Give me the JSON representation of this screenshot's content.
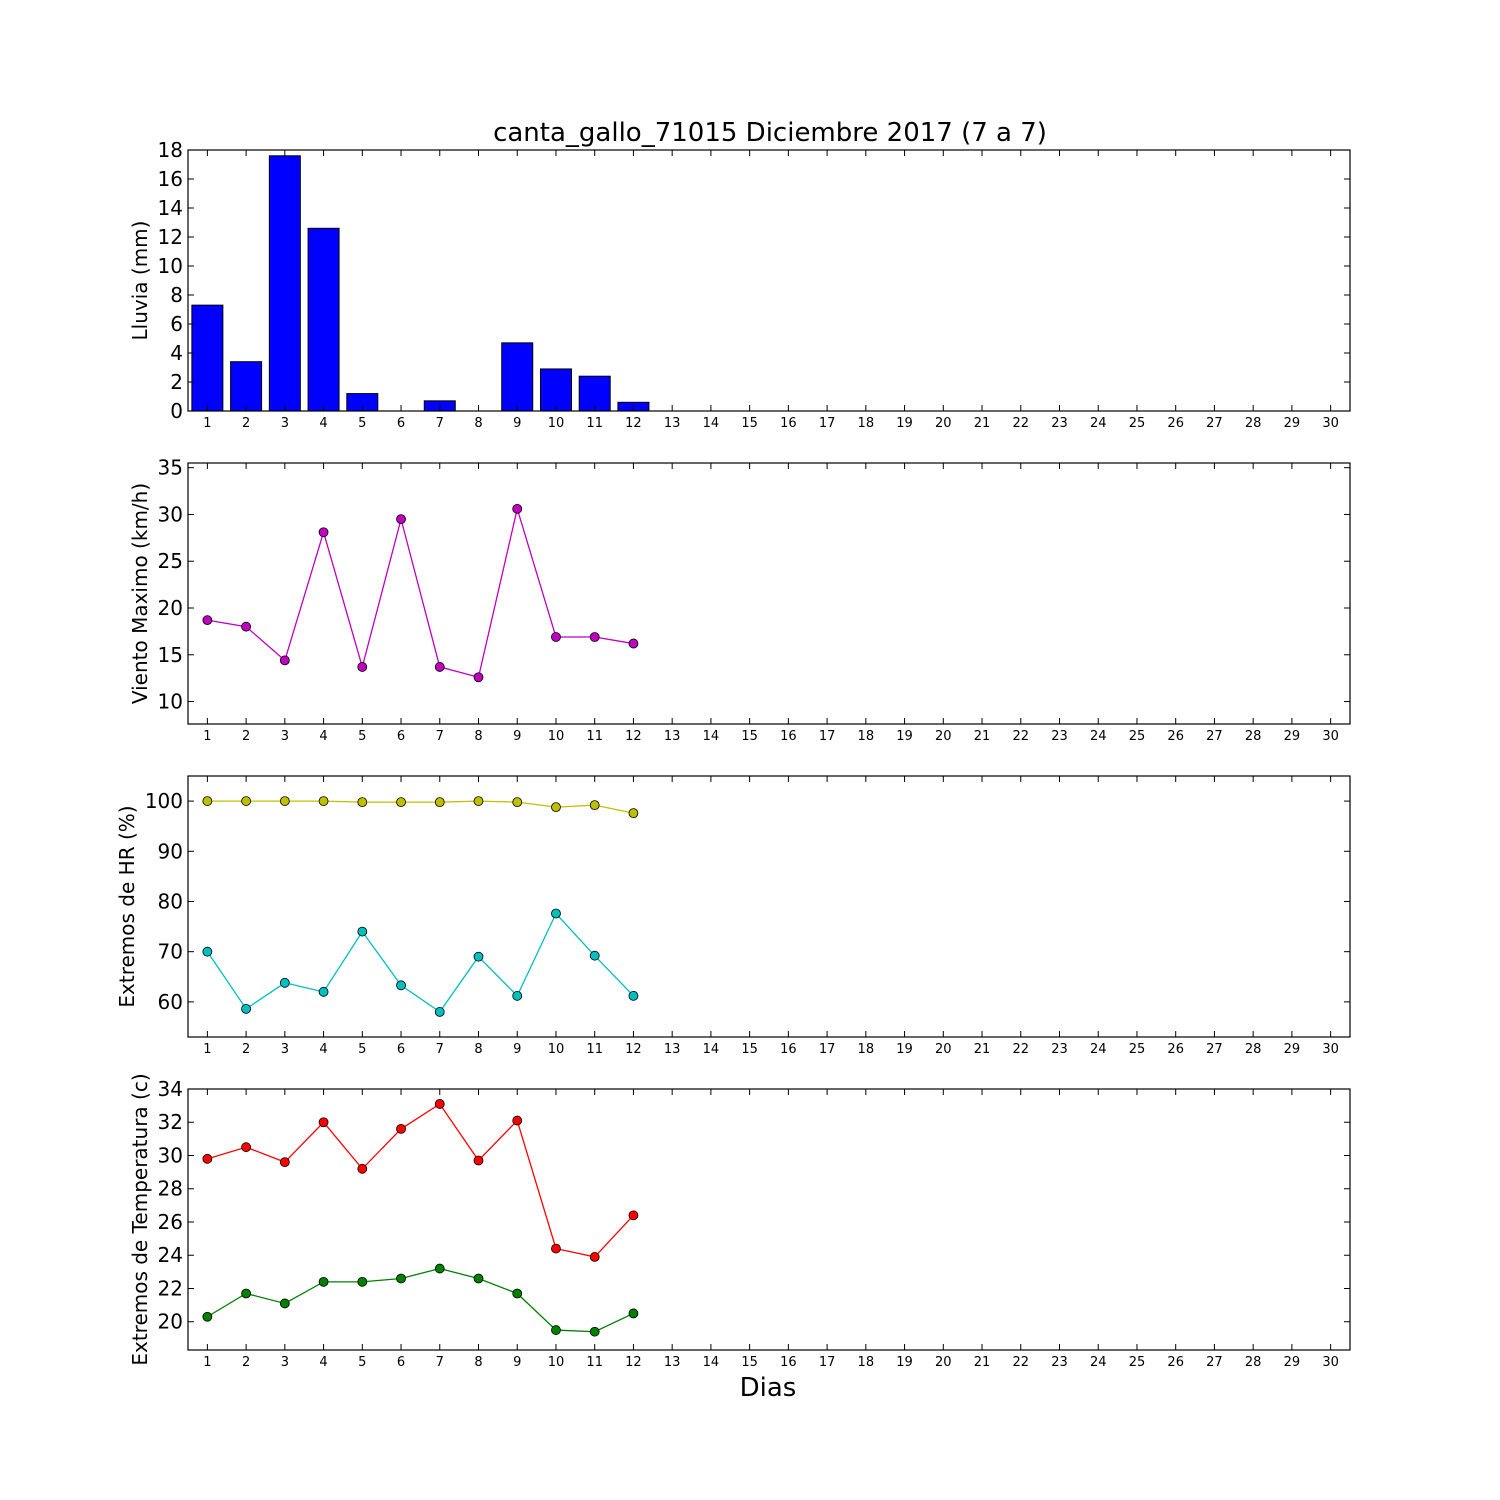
{
  "title": "canta_gallo_71015 Diciembre 2017  (7 a 7)",
  "xlabel": "Dias",
  "chart_data": [
    {
      "type": "bar",
      "ylabel": "Lluvia (mm)",
      "xlim": [
        0.5,
        30.5
      ],
      "ylim": [
        0,
        18
      ],
      "yticks": [
        0,
        2,
        4,
        6,
        8,
        10,
        12,
        14,
        16,
        18
      ],
      "xticks": [
        1,
        2,
        3,
        4,
        5,
        6,
        7,
        8,
        9,
        10,
        11,
        12,
        13,
        14,
        15,
        16,
        17,
        18,
        19,
        20,
        21,
        22,
        23,
        24,
        25,
        26,
        27,
        28,
        29,
        30
      ],
      "x": [
        1,
        2,
        3,
        4,
        5,
        6,
        7,
        8,
        9,
        10,
        11,
        12
      ],
      "series": [
        {
          "values": [
            7.3,
            3.4,
            17.6,
            12.6,
            1.2,
            0,
            0.7,
            0,
            4.7,
            2.9,
            2.4,
            0.6
          ],
          "color": "#0000ff"
        }
      ]
    },
    {
      "type": "line",
      "ylabel": "Viento Maximo (km/h)",
      "xlim": [
        0.5,
        30.5
      ],
      "ylim": [
        7.6,
        35.5
      ],
      "yticks": [
        10,
        15,
        20,
        25,
        30,
        35
      ],
      "xticks": [
        1,
        2,
        3,
        4,
        5,
        6,
        7,
        8,
        9,
        10,
        11,
        12,
        13,
        14,
        15,
        16,
        17,
        18,
        19,
        20,
        21,
        22,
        23,
        24,
        25,
        26,
        27,
        28,
        29,
        30
      ],
      "x": [
        1,
        2,
        3,
        4,
        5,
        6,
        7,
        8,
        9,
        10,
        11,
        12
      ],
      "series": [
        {
          "values": [
            18.7,
            18.0,
            14.4,
            28.1,
            13.7,
            29.5,
            13.7,
            12.6,
            30.6,
            16.9,
            16.9,
            16.2
          ],
          "color": "#bf00bf"
        }
      ]
    },
    {
      "type": "line",
      "ylabel": "Extremos de HR (%)",
      "xlim": [
        0.5,
        30.5
      ],
      "ylim": [
        53,
        105
      ],
      "yticks": [
        60,
        70,
        80,
        90,
        100
      ],
      "xticks": [
        1,
        2,
        3,
        4,
        5,
        6,
        7,
        8,
        9,
        10,
        11,
        12,
        13,
        14,
        15,
        16,
        17,
        18,
        19,
        20,
        21,
        22,
        23,
        24,
        25,
        26,
        27,
        28,
        29,
        30
      ],
      "x": [
        1,
        2,
        3,
        4,
        5,
        6,
        7,
        8,
        9,
        10,
        11,
        12
      ],
      "series": [
        {
          "values": [
            100,
            100,
            100,
            100,
            99.8,
            99.8,
            99.8,
            100,
            99.8,
            98.8,
            99.2,
            97.6
          ],
          "color": "#bfbf00"
        },
        {
          "values": [
            70.0,
            58.6,
            63.8,
            62.0,
            74.0,
            63.3,
            58.0,
            69.0,
            61.2,
            77.6,
            69.2,
            61.2
          ],
          "color": "#00bfbf"
        }
      ]
    },
    {
      "type": "line",
      "ylabel": "Extremos de Temperatura (c)",
      "xlim": [
        0.5,
        30.5
      ],
      "ylim": [
        18.3,
        34
      ],
      "yticks": [
        20,
        22,
        24,
        26,
        28,
        30,
        32,
        34
      ],
      "xticks": [
        1,
        2,
        3,
        4,
        5,
        6,
        7,
        8,
        9,
        10,
        11,
        12,
        13,
        14,
        15,
        16,
        17,
        18,
        19,
        20,
        21,
        22,
        23,
        24,
        25,
        26,
        27,
        28,
        29,
        30
      ],
      "x": [
        1,
        2,
        3,
        4,
        5,
        6,
        7,
        8,
        9,
        10,
        11,
        12
      ],
      "series": [
        {
          "values": [
            29.8,
            30.5,
            29.6,
            32.0,
            29.2,
            31.6,
            33.1,
            29.7,
            32.1,
            24.4,
            23.9,
            26.4
          ],
          "color": "#ff0000"
        },
        {
          "values": [
            20.3,
            21.7,
            21.1,
            22.4,
            22.4,
            22.6,
            23.2,
            22.6,
            21.7,
            19.5,
            19.4,
            20.5
          ],
          "color": "#008000"
        }
      ]
    }
  ]
}
